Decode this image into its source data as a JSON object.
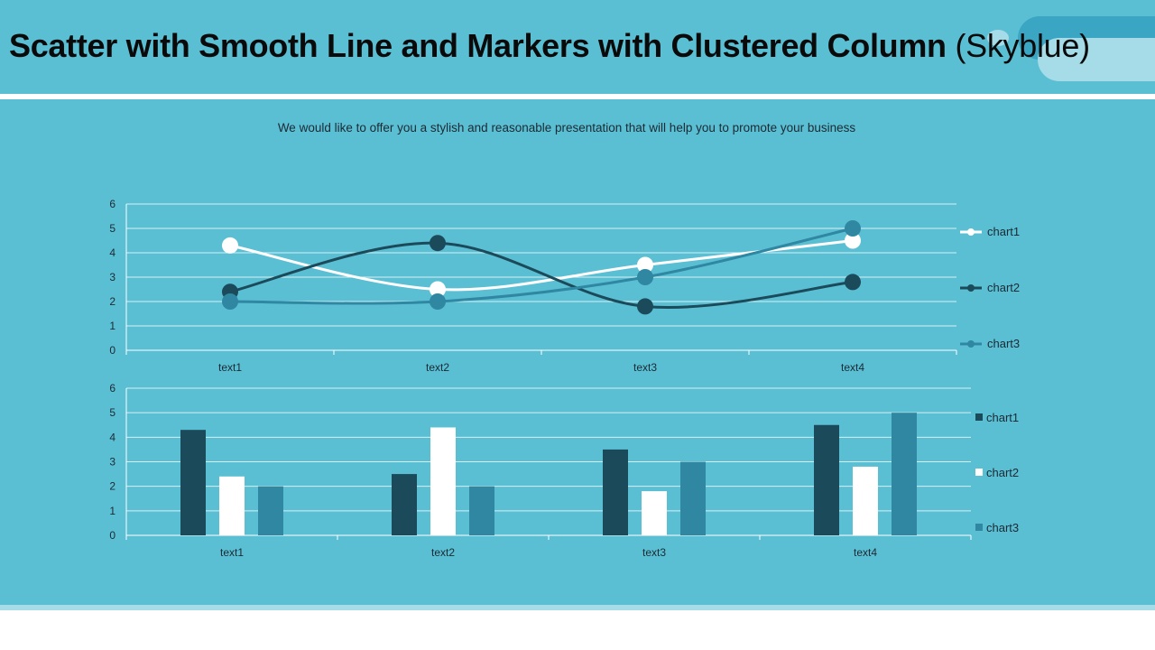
{
  "page": {
    "title_main": "Scatter with Smooth Line and Markers with Clustered Column",
    "title_suffix": "(Skyblue)",
    "subtitle": "We would like to offer you a stylish and reasonable presentation that will help you to promote your business"
  },
  "colors": {
    "background": "#5bbfd4",
    "chart1_line": "#ffffff",
    "chart2_line": "#1b4a5a",
    "chart3_line": "#2f87a2",
    "chart1_bar": "#1b4a5a",
    "chart2_bar": "#ffffff",
    "chart3_bar": "#2f87a2"
  },
  "chart_data": [
    {
      "type": "line",
      "subtype": "scatter-smooth-markers",
      "categories": [
        "text1",
        "text2",
        "text3",
        "text4"
      ],
      "series": [
        {
          "name": "chart1",
          "values": [
            4.3,
            2.5,
            3.5,
            4.5
          ]
        },
        {
          "name": "chart2",
          "values": [
            2.4,
            4.4,
            1.8,
            2.8
          ]
        },
        {
          "name": "chart3",
          "values": [
            2.0,
            2.0,
            3.0,
            5.0
          ]
        }
      ],
      "ylim": [
        0,
        6
      ],
      "yticks": [
        0,
        1,
        2,
        3,
        4,
        5,
        6
      ],
      "grid": true,
      "legend": "right"
    },
    {
      "type": "bar",
      "subtype": "clustered-column",
      "categories": [
        "text1",
        "text2",
        "text3",
        "text4"
      ],
      "series": [
        {
          "name": "chart1",
          "values": [
            4.3,
            2.5,
            3.5,
            4.5
          ]
        },
        {
          "name": "chart2",
          "values": [
            2.4,
            4.4,
            1.8,
            2.8
          ]
        },
        {
          "name": "chart3",
          "values": [
            2.0,
            2.0,
            3.0,
            5.0
          ]
        }
      ],
      "ylim": [
        0,
        6
      ],
      "yticks": [
        0,
        1,
        2,
        3,
        4,
        5,
        6
      ],
      "grid": true,
      "legend": "right"
    }
  ]
}
